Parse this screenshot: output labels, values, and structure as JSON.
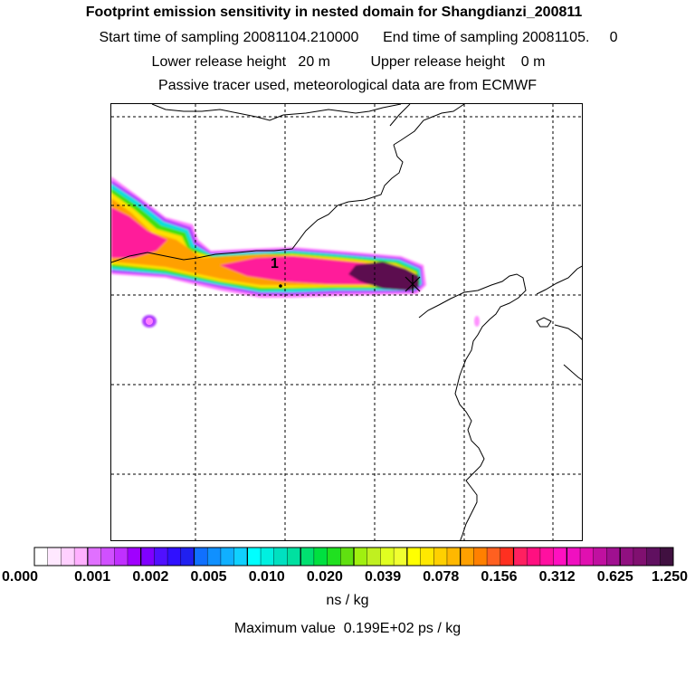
{
  "titles": {
    "line1": "Footprint emission sensitivity in nested domain for Shangdianzi_200811",
    "line2": "Start time of sampling 20081104.210000      End time of sampling 20081105.     0",
    "line3": "Lower release height   20 m          Upper release height    0 m",
    "line4": "Passive tracer used, meteorological data are from ECMWF"
  },
  "map": {
    "marker_label": "1",
    "colors": {
      "plume_magenta": "#ff1a9a",
      "plume_dark": "#5c1050",
      "plume_yellow": "#ffe000",
      "plume_orange": "#ffa000",
      "plume_green": "#40e010",
      "plume_cyan": "#00e0e0",
      "plume_violet": "#b040ff",
      "plume_pink": "#ff80ff"
    }
  },
  "colorbar": {
    "tick_labels": [
      "0.000",
      "0.001",
      "0.002",
      "0.005",
      "0.010",
      "0.020",
      "0.039",
      "0.078",
      "0.156",
      "0.312",
      "0.625",
      "1.250"
    ],
    "colors": [
      "#ffffff",
      "#ffe8ff",
      "#ffd0ff",
      "#ffb0ff",
      "#e070ff",
      "#d050ff",
      "#c030ff",
      "#a000ff",
      "#8000ff",
      "#5010ff",
      "#3010ff",
      "#2020f0",
      "#1070ff",
      "#1090ff",
      "#10b0ff",
      "#10d0ff",
      "#00ffff",
      "#00f0e0",
      "#00e0c0",
      "#00e0a0",
      "#00e070",
      "#00e040",
      "#20e020",
      "#60e010",
      "#a0f010",
      "#c0f020",
      "#e0ff20",
      "#f0ff30",
      "#ffff00",
      "#ffe800",
      "#ffd000",
      "#ffb800",
      "#ffa000",
      "#ff8000",
      "#ff6020",
      "#ff3020",
      "#ff2060",
      "#ff1080",
      "#ff10a0",
      "#ff10c0",
      "#f010c0",
      "#e010b0",
      "#c010a0",
      "#a01090",
      "#901080",
      "#801070",
      "#601060",
      "#401040"
    ]
  },
  "unit_label": "ns / kg",
  "max_label": "Maximum value  0.199E+02 ps / kg"
}
